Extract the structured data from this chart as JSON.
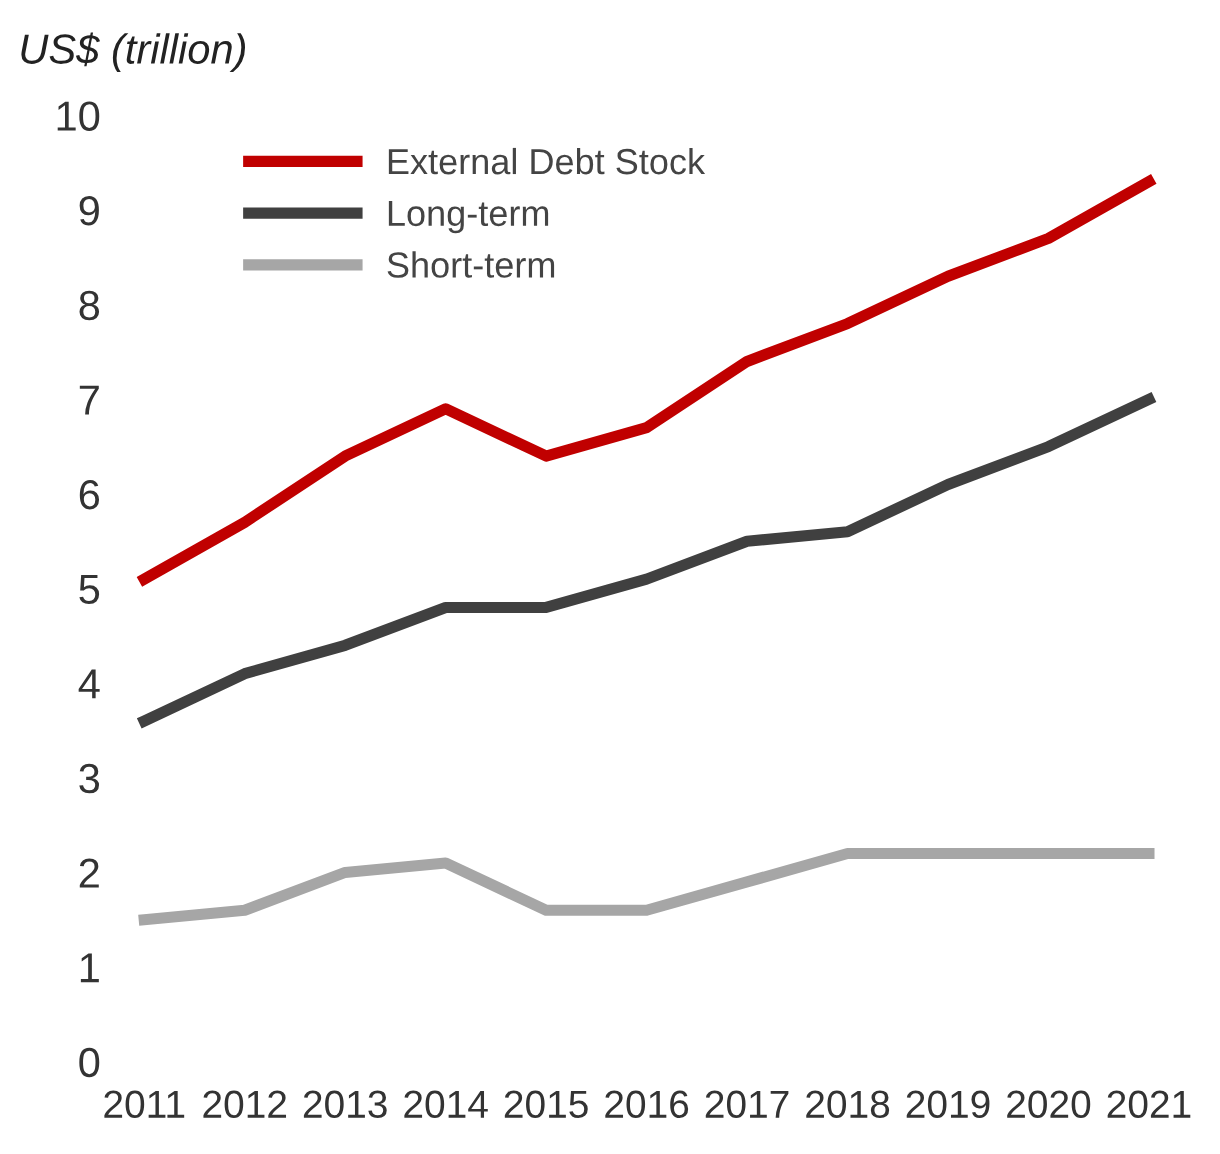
{
  "chart_data": {
    "type": "line",
    "ylabel": "US$ (trillion)",
    "categories": [
      "2011",
      "2012",
      "2013",
      "2014",
      "2015",
      "2016",
      "2017",
      "2018",
      "2019",
      "2020",
      "2021"
    ],
    "series": [
      {
        "name": "External Debt Stock",
        "color": "#c00000",
        "values": [
          5.1,
          5.7,
          6.4,
          6.9,
          6.4,
          6.7,
          7.4,
          7.8,
          8.3,
          8.7,
          9.3
        ]
      },
      {
        "name": "Long-term",
        "color": "#404040",
        "values": [
          3.6,
          4.1,
          4.4,
          4.8,
          4.8,
          5.1,
          5.5,
          5.6,
          6.1,
          6.5,
          7.0
        ]
      },
      {
        "name": "Short-term",
        "color": "#a6a6a6",
        "values": [
          1.5,
          1.6,
          2.0,
          2.1,
          1.6,
          1.6,
          1.9,
          2.2,
          2.2,
          2.2,
          2.2
        ]
      }
    ],
    "ylim": [
      0,
      10
    ],
    "yticks": [
      0,
      1,
      2,
      3,
      4,
      5,
      6,
      7,
      8,
      9,
      10
    ],
    "grid": false,
    "legend": "top left",
    "marker": "none",
    "line_style": "solid"
  }
}
